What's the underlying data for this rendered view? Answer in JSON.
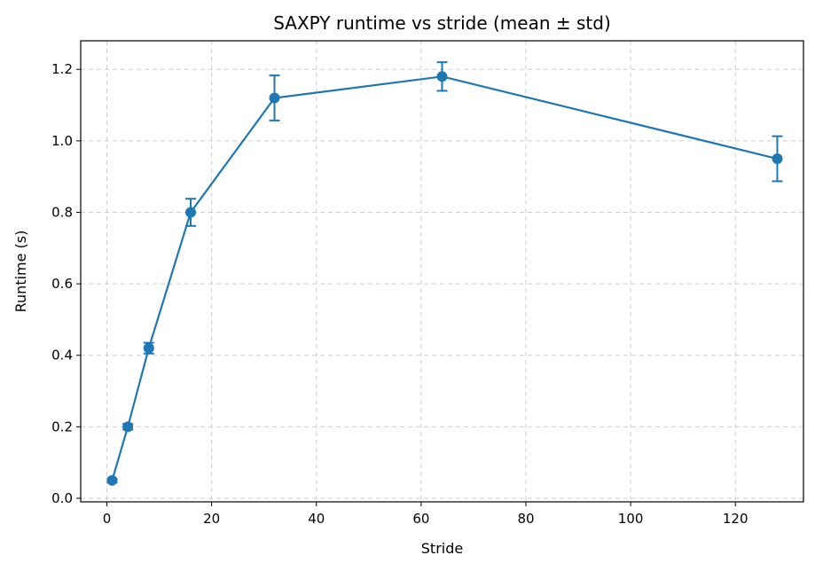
{
  "chart_data": {
    "type": "line",
    "title": "SAXPY runtime vs stride (mean ± std)",
    "xlabel": "Stride",
    "ylabel": "Runtime (s)",
    "xlim": [
      -5,
      133
    ],
    "ylim": [
      -0.01,
      1.28
    ],
    "xticks": [
      0,
      20,
      40,
      60,
      80,
      100,
      120
    ],
    "yticks": [
      0.0,
      0.2,
      0.4,
      0.6,
      0.8,
      1.0,
      1.2
    ],
    "xtick_labels": [
      "0",
      "20",
      "40",
      "60",
      "80",
      100,
      "120"
    ],
    "ytick_labels": [
      "0.0",
      "0.2",
      "0.4",
      "0.6",
      "0.8",
      "1.0",
      "1.2"
    ],
    "grid": true,
    "series": [
      {
        "color": "#1f77b4",
        "marker": "circle",
        "x": [
          1,
          4,
          8,
          16,
          32,
          64,
          128
        ],
        "y": [
          0.05,
          0.2,
          0.42,
          0.8,
          1.12,
          1.18,
          0.95
        ],
        "yerr": [
          0.005,
          0.008,
          0.015,
          0.038,
          0.063,
          0.04,
          0.063
        ]
      }
    ]
  }
}
